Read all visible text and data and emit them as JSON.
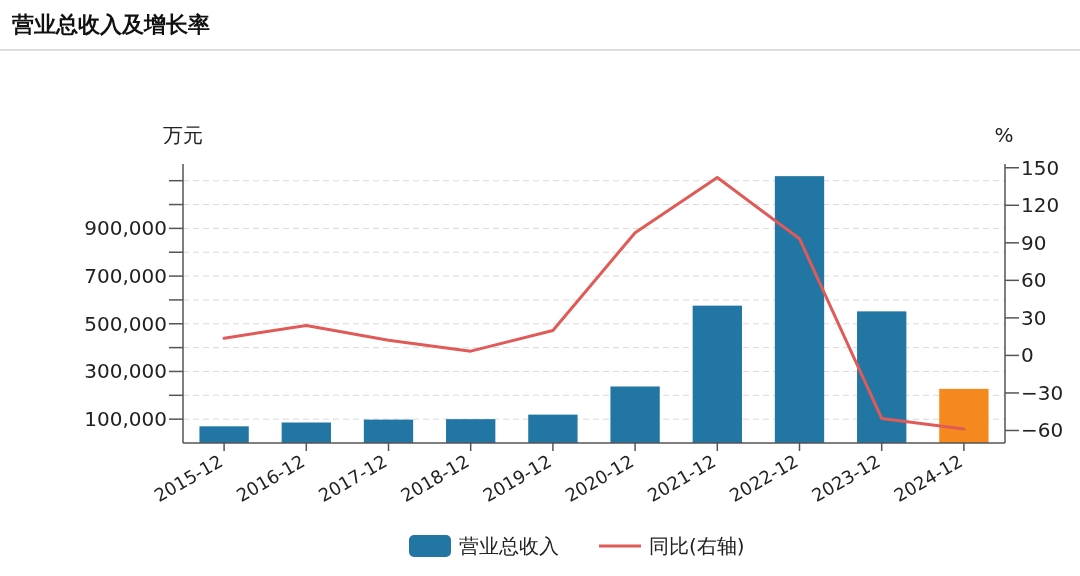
{
  "chart_data": {
    "type": "bar",
    "title": "营业总收入及增长率",
    "ylabel": "万元",
    "y2label": "%",
    "categories": [
      "2015-12",
      "2016-12",
      "2017-12",
      "2018-12",
      "2019-12",
      "2020-12",
      "2021-12",
      "2022-12",
      "2023-12",
      "2024-12"
    ],
    "series": [
      {
        "name": "营业总收入",
        "color": "#2276a3",
        "colors": [
          "#2276a3",
          "#2276a3",
          "#2276a3",
          "#2276a3",
          "#2276a3",
          "#2276a3",
          "#2276a3",
          "#2276a3",
          "#2276a3",
          "#f5891d"
        ],
        "values": [
          70000,
          86000,
          98000,
          100000,
          119000,
          237000,
          576000,
          1119000,
          552000,
          227000
        ]
      },
      {
        "name": "同比(右轴)",
        "type": "line",
        "axis": "y2",
        "color": "#e05a57",
        "values": [
          13.8,
          23.9,
          12.2,
          3.4,
          19.9,
          98.1,
          142.2,
          93.3,
          -50.4,
          -58.9
        ]
      }
    ],
    "ylim": [
      0,
      1170000
    ],
    "yticks": [
      {
        "value": 100000,
        "label": "100,000"
      },
      {
        "value": 200000,
        "label": null
      },
      {
        "value": 300000,
        "label": "300,000"
      },
      {
        "value": 400000,
        "label": null
      },
      {
        "value": 500000,
        "label": "500,000"
      },
      {
        "value": 600000,
        "label": null
      },
      {
        "value": 700000,
        "label": "700,000"
      },
      {
        "value": 800000,
        "label": null
      },
      {
        "value": 900000,
        "label": "900,000"
      },
      {
        "value": 1000000,
        "label": null
      },
      {
        "value": 1100000,
        "label": null
      }
    ],
    "y2lim": [
      -70,
      153
    ],
    "y2ticks": [
      -60,
      -30,
      0,
      30,
      60,
      90,
      120,
      150
    ],
    "grid": "y",
    "legend": "bottom"
  }
}
